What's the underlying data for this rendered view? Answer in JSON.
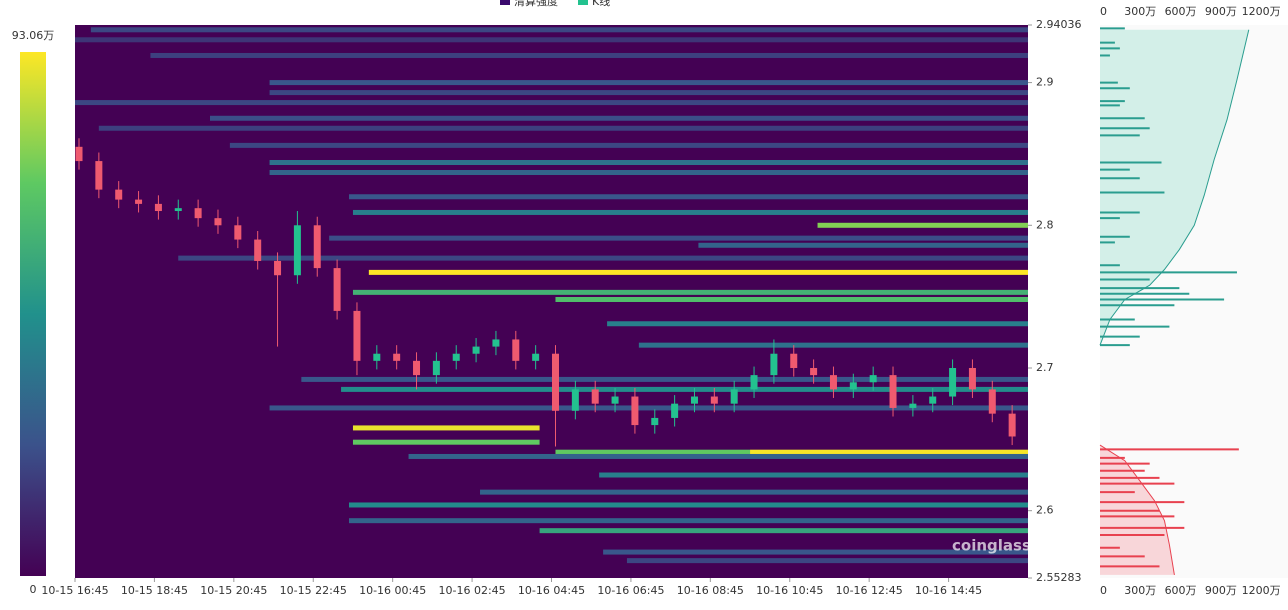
{
  "chart_data": {
    "type": "heatmap",
    "legend": [
      {
        "name": "清算强度",
        "color": "#3b0a6e"
      },
      {
        "name": "K线",
        "color": "#23c28f"
      }
    ],
    "colorbar": {
      "lim": [
        0,
        93.06
      ],
      "ticks": [
        0,
        {
          "value": 93.06,
          "label": "93.06万"
        }
      ]
    },
    "ylim": [
      2.55283,
      2.94036
    ],
    "yticks": [
      2.55283,
      2.6,
      2.7,
      2.8,
      2.9,
      2.94036
    ],
    "xlim": [
      0,
      24
    ],
    "xticks": [
      {
        "value": 0,
        "label": "10-15 16:45"
      },
      {
        "value": 2,
        "label": "10-15 18:45"
      },
      {
        "value": 4,
        "label": "10-15 20:45"
      },
      {
        "value": 6,
        "label": "10-15 22:45"
      },
      {
        "value": 8,
        "label": "10-16 00:45"
      },
      {
        "value": 10,
        "label": "10-16 02:45"
      },
      {
        "value": 12,
        "label": "10-16 04:45"
      },
      {
        "value": 14,
        "label": "10-16 06:45"
      },
      {
        "value": 16,
        "label": "10-16 08:45"
      },
      {
        "value": 18,
        "label": "10-16 10:45"
      },
      {
        "value": 20,
        "label": "10-16 12:45"
      },
      {
        "value": 22,
        "label": "10-16 14:45"
      }
    ],
    "bands": {
      "price": [
        2.937,
        2.93,
        2.919,
        2.9,
        2.893,
        2.886,
        2.875,
        2.868,
        2.856,
        2.844,
        2.837,
        2.82,
        2.809,
        2.8,
        2.791,
        2.786,
        2.777,
        2.767,
        2.753,
        2.748,
        2.731,
        2.716,
        2.692,
        2.685,
        2.672,
        2.658,
        2.648,
        2.641,
        2.641,
        2.638,
        2.625,
        2.613,
        2.604,
        2.593,
        2.586,
        2.571,
        2.565
      ],
      "start": [
        0.4,
        0,
        1.9,
        4.9,
        4.9,
        0,
        3.4,
        0.6,
        3.9,
        4.9,
        4.9,
        6.9,
        7.0,
        18.7,
        6.4,
        15.7,
        2.6,
        7.4,
        7.0,
        12.1,
        13.4,
        14.2,
        5.7,
        6.7,
        4.9,
        7.0,
        7.0,
        12.1,
        17.0,
        8.4,
        13.2,
        10.2,
        6.9,
        6.9,
        11.7,
        13.3,
        13.9
      ],
      "end": [
        24,
        24,
        24,
        24,
        24,
        24,
        24,
        24,
        24,
        24,
        24,
        24,
        24,
        24,
        24,
        24,
        24,
        24,
        24,
        24,
        24,
        24,
        24,
        24,
        24,
        11.7,
        11.7,
        17.0,
        24,
        24,
        24,
        24,
        24,
        24,
        24,
        24,
        24
      ],
      "intensity": [
        20,
        15,
        18,
        25,
        20,
        20,
        22,
        18,
        20,
        35,
        30,
        25,
        40,
        75,
        22,
        30,
        20,
        93,
        60,
        65,
        40,
        35,
        25,
        45,
        25,
        90,
        70,
        70,
        92,
        30,
        40,
        30,
        45,
        30,
        55,
        25,
        20
      ]
    },
    "candles": {
      "up_color": "#23c28f",
      "down_color": "#ef5a6f",
      "x": [
        0,
        0.5,
        1,
        1.5,
        2,
        2.5,
        3,
        3.5,
        4,
        4.5,
        5,
        5.5,
        6,
        6.5,
        7,
        7.5,
        8,
        8.5,
        9,
        9.5,
        10,
        10.5,
        11,
        11.5,
        12,
        12.5,
        13,
        13.5,
        14,
        14.5,
        15,
        15.5,
        16,
        16.5,
        17,
        17.5,
        18,
        18.5,
        19,
        19.5,
        20,
        20.5,
        21,
        21.5,
        22,
        22.5,
        23,
        23.5
      ],
      "open": [
        2.855,
        2.845,
        2.825,
        2.818,
        2.815,
        2.81,
        2.812,
        2.805,
        2.8,
        2.79,
        2.775,
        2.765,
        2.8,
        2.77,
        2.74,
        2.705,
        2.71,
        2.705,
        2.695,
        2.705,
        2.71,
        2.715,
        2.72,
        2.705,
        2.71,
        2.67,
        2.685,
        2.675,
        2.68,
        2.66,
        2.665,
        2.675,
        2.68,
        2.675,
        2.685,
        2.695,
        2.71,
        2.7,
        2.695,
        2.685,
        2.69,
        2.695,
        2.672,
        2.675,
        2.68,
        2.7,
        2.685,
        2.668
      ],
      "high": [
        2.861,
        2.851,
        2.831,
        2.824,
        2.821,
        2.818,
        2.818,
        2.811,
        2.806,
        2.796,
        2.781,
        2.81,
        2.806,
        2.776,
        2.746,
        2.716,
        2.716,
        2.711,
        2.711,
        2.716,
        2.721,
        2.726,
        2.726,
        2.716,
        2.716,
        2.691,
        2.691,
        2.686,
        2.686,
        2.671,
        2.681,
        2.686,
        2.686,
        2.691,
        2.701,
        2.72,
        2.716,
        2.706,
        2.701,
        2.696,
        2.701,
        2.701,
        2.681,
        2.686,
        2.706,
        2.706,
        2.691,
        2.674
      ],
      "low": [
        2.839,
        2.819,
        2.812,
        2.809,
        2.804,
        2.804,
        2.799,
        2.794,
        2.784,
        2.769,
        2.715,
        2.759,
        2.764,
        2.734,
        2.695,
        2.699,
        2.699,
        2.685,
        2.689,
        2.699,
        2.704,
        2.709,
        2.699,
        2.699,
        2.645,
        2.664,
        2.669,
        2.669,
        2.654,
        2.654,
        2.659,
        2.669,
        2.669,
        2.669,
        2.679,
        2.689,
        2.694,
        2.689,
        2.679,
        2.679,
        2.684,
        2.666,
        2.666,
        2.669,
        2.674,
        2.679,
        2.662,
        2.646
      ],
      "close": [
        2.845,
        2.825,
        2.818,
        2.815,
        2.81,
        2.812,
        2.805,
        2.8,
        2.79,
        2.775,
        2.765,
        2.8,
        2.77,
        2.74,
        2.705,
        2.71,
        2.705,
        2.695,
        2.705,
        2.71,
        2.715,
        2.72,
        2.705,
        2.71,
        2.67,
        2.685,
        2.675,
        2.68,
        2.66,
        2.665,
        2.675,
        2.68,
        2.675,
        2.685,
        2.695,
        2.71,
        2.7,
        2.695,
        2.685,
        2.69,
        2.695,
        2.672,
        2.675,
        2.68,
        2.7,
        2.685,
        2.668,
        2.652
      ]
    },
    "side": {
      "xlim": [
        0,
        1400
      ],
      "xticks": [
        0,
        {
          "value": 300,
          "label": "300万"
        },
        {
          "value": 600,
          "label": "600万"
        },
        {
          "value": 900,
          "label": "900万"
        },
        {
          "value": 1200,
          "label": "1200万"
        }
      ],
      "short": {
        "color": "#2a9d8f",
        "fill": "#d3efe8",
        "price": [
          2.938,
          2.928,
          2.924,
          2.919,
          2.9,
          2.896,
          2.887,
          2.884,
          2.875,
          2.868,
          2.863,
          2.844,
          2.839,
          2.833,
          2.823,
          2.809,
          2.805,
          2.792,
          2.788,
          2.772,
          2.767,
          2.762,
          2.756,
          2.752,
          2.748,
          2.744,
          2.734,
          2.729,
          2.722,
          2.716
        ],
        "values": [
          185,
          111,
          148,
          74,
          133,
          222,
          185,
          148,
          333,
          370,
          296,
          458,
          222,
          296,
          480,
          296,
          148,
          222,
          111,
          148,
          1020,
          370,
          591,
          665,
          924,
          554,
          259,
          517,
          296,
          222
        ],
        "cum_price": [
          2.716,
          2.734,
          2.748,
          2.758,
          2.769,
          2.783,
          2.8,
          2.821,
          2.846,
          2.874,
          2.902,
          2.937
        ],
        "cum_values": [
          0,
          74,
          185,
          370,
          480,
          591,
          702,
          776,
          850,
          946,
          1020,
          1108
        ]
      },
      "long": {
        "color": "#e8414f",
        "fill": "#f8d6d9",
        "price": [
          2.643,
          2.637,
          2.633,
          2.628,
          2.623,
          2.619,
          2.613,
          2.606,
          2.6,
          2.596,
          2.588,
          2.583,
          2.574,
          2.568,
          2.561
        ],
        "values": [
          1034,
          185,
          370,
          333,
          443,
          554,
          259,
          628,
          443,
          554,
          628,
          480,
          148,
          333,
          443
        ],
        "cum_price": [
          2.646,
          2.635,
          2.621,
          2.607,
          2.593,
          2.576,
          2.555
        ],
        "cum_values": [
          0,
          185,
          296,
          406,
          480,
          517,
          554
        ]
      }
    },
    "watermark": "coinglass"
  }
}
